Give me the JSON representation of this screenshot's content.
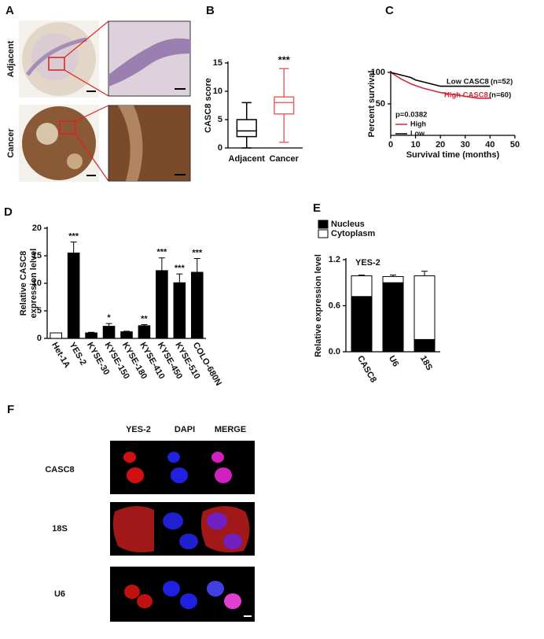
{
  "panel_A": {
    "letter": "A",
    "row_labels": [
      "Adjacent",
      "Cancer"
    ]
  },
  "panel_F": {
    "letter": "F",
    "column_labels": [
      "YES-2",
      "DAPI",
      "MERGE"
    ],
    "row_labels": [
      "CASC8",
      "18S",
      "U6"
    ]
  },
  "chart_data": [
    {
      "type": "box",
      "letter": "B",
      "ylabel": "CASC8 score",
      "categories": [
        "Adjacent",
        "Cancer"
      ],
      "boxes": [
        {
          "min": 0,
          "q1": 2,
          "median": 3,
          "q3": 5,
          "max": 8,
          "color": "#000000"
        },
        {
          "min": 1,
          "q1": 6,
          "median": 8,
          "q3": 9,
          "max": 14,
          "color": "#e06666"
        }
      ],
      "annotations": [
        null,
        "***"
      ],
      "ylim": [
        0,
        15
      ],
      "yticks": [
        0,
        5,
        10,
        15
      ]
    },
    {
      "type": "line",
      "letter": "C",
      "ylabel": "Percent survival",
      "xlabel": "Survival time (months)",
      "xlim": [
        0,
        50
      ],
      "xticks": [
        0,
        10,
        20,
        30,
        40,
        50
      ],
      "ylim": [
        0,
        100
      ],
      "yticks": [
        50,
        100
      ],
      "series": [
        {
          "name": "High",
          "color": "#cc2a3a",
          "x": [
            0,
            2,
            4,
            6,
            8,
            10,
            13,
            16,
            20,
            25,
            30,
            35,
            40
          ],
          "values": [
            100,
            95,
            90,
            86,
            82,
            79,
            75,
            72,
            68,
            65,
            62,
            59,
            59
          ]
        },
        {
          "name": "Low",
          "color": "#000000",
          "x": [
            0,
            3,
            5,
            8,
            10,
            13,
            16,
            20,
            40
          ],
          "values": [
            100,
            97,
            95,
            92,
            88,
            85,
            82,
            78,
            78
          ]
        }
      ],
      "annotations": [
        "Low CASC8",
        "(n=52)",
        "High CASC8",
        "(n=60)",
        "p=0.0382"
      ]
    },
    {
      "type": "bar",
      "letter": "D",
      "ylabel": [
        "Relative CASC8",
        "expression lelvel"
      ],
      "categories": [
        "Het-1A",
        "YES-2",
        "KYSE-30",
        "KYSE-150",
        "KYSE-180",
        "KYSE-410",
        "KYSE-450",
        "KYSE-510",
        "COLO-680N"
      ],
      "values": [
        1,
        15.5,
        1,
        2.2,
        1.2,
        2.3,
        12.3,
        10.1,
        12
      ],
      "errors": [
        0,
        2,
        0.1,
        0.5,
        0.1,
        0.2,
        2.3,
        1.6,
        2.5
      ],
      "colors": [
        "#ffffff",
        "#000000",
        "#000000",
        "#000000",
        "#000000",
        "#000000",
        "#000000",
        "#000000",
        "#000000"
      ],
      "annotations": [
        null,
        "***",
        null,
        "*",
        null,
        "**",
        "***",
        "***",
        "***"
      ],
      "ylim": [
        0,
        20
      ],
      "yticks": [
        0,
        5,
        10,
        15,
        20
      ]
    },
    {
      "type": "bar",
      "stacked": true,
      "letter": "E",
      "ylabel": "Relative expression level",
      "subtitle": "YES-2",
      "categories": [
        "CASC8",
        "U6",
        "18S"
      ],
      "series": [
        {
          "name": "Nucleus",
          "color": "#000000",
          "values": [
            0.72,
            0.9,
            0.16
          ],
          "errors": [
            0.02,
            0.03,
            0.07
          ]
        },
        {
          "name": "Cytoplasm",
          "color": "#ffffff",
          "values": [
            0.27,
            0.08,
            0.83
          ],
          "errors": [
            0.01,
            0.02,
            0.06
          ]
        }
      ],
      "ylim": [
        0,
        1.2
      ],
      "yticks": [
        {
          "value": 0,
          "label": "0.0"
        },
        {
          "value": 0.6,
          "label": "0.6"
        },
        {
          "value": 1.2,
          "label": "1.2"
        }
      ]
    }
  ]
}
